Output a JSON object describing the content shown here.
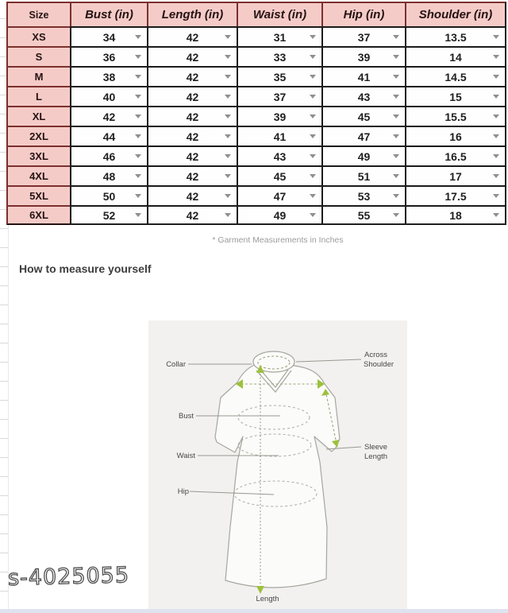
{
  "table": {
    "columns": [
      "Size",
      "Bust (in)",
      "Length (in)",
      "Waist (in)",
      "Hip (in)",
      "Shoulder (in)"
    ],
    "rows": [
      {
        "size": "XS",
        "values": [
          "34",
          "42",
          "31",
          "37",
          "13.5"
        ]
      },
      {
        "size": "S",
        "values": [
          "36",
          "42",
          "33",
          "39",
          "14"
        ]
      },
      {
        "size": "M",
        "values": [
          "38",
          "42",
          "35",
          "41",
          "14.5"
        ]
      },
      {
        "size": "L",
        "values": [
          "40",
          "42",
          "37",
          "43",
          "15"
        ]
      },
      {
        "size": "XL",
        "values": [
          "42",
          "42",
          "39",
          "45",
          "15.5"
        ]
      },
      {
        "size": "2XL",
        "values": [
          "44",
          "42",
          "41",
          "47",
          "16"
        ]
      },
      {
        "size": "3XL",
        "values": [
          "46",
          "42",
          "43",
          "49",
          "16.5"
        ]
      },
      {
        "size": "4XL",
        "values": [
          "48",
          "42",
          "45",
          "51",
          "17"
        ]
      },
      {
        "size": "5XL",
        "values": [
          "50",
          "42",
          "47",
          "53",
          "17.5"
        ]
      },
      {
        "size": "6XL",
        "values": [
          "52",
          "42",
          "49",
          "55",
          "18"
        ]
      }
    ],
    "footnote": "* Garment Measurements in Inches"
  },
  "section": {
    "heading": "How to measure yourself"
  },
  "diagram": {
    "labels": {
      "collar": "Collar",
      "bust": "Bust",
      "waist": "Waist",
      "hip": "Hip",
      "across_shoulder_line1": "Across",
      "across_shoulder_line2": "Shoulder",
      "sleeve_length_line1": "Sleeve",
      "sleeve_length_line2": "Length",
      "length": "Length"
    }
  },
  "watermark": "s-4025055",
  "icons": {
    "dropdown": "triangle-down"
  },
  "colors": {
    "header_pink": "#f5cbc8",
    "table_border_red": "#7c302c",
    "table_border_black": "#1b1b1b",
    "panel_grey": "#f2f1f0",
    "measure_arrow_green": "#9dc13b",
    "bottom_strip_blue": "#dfe3f0"
  }
}
